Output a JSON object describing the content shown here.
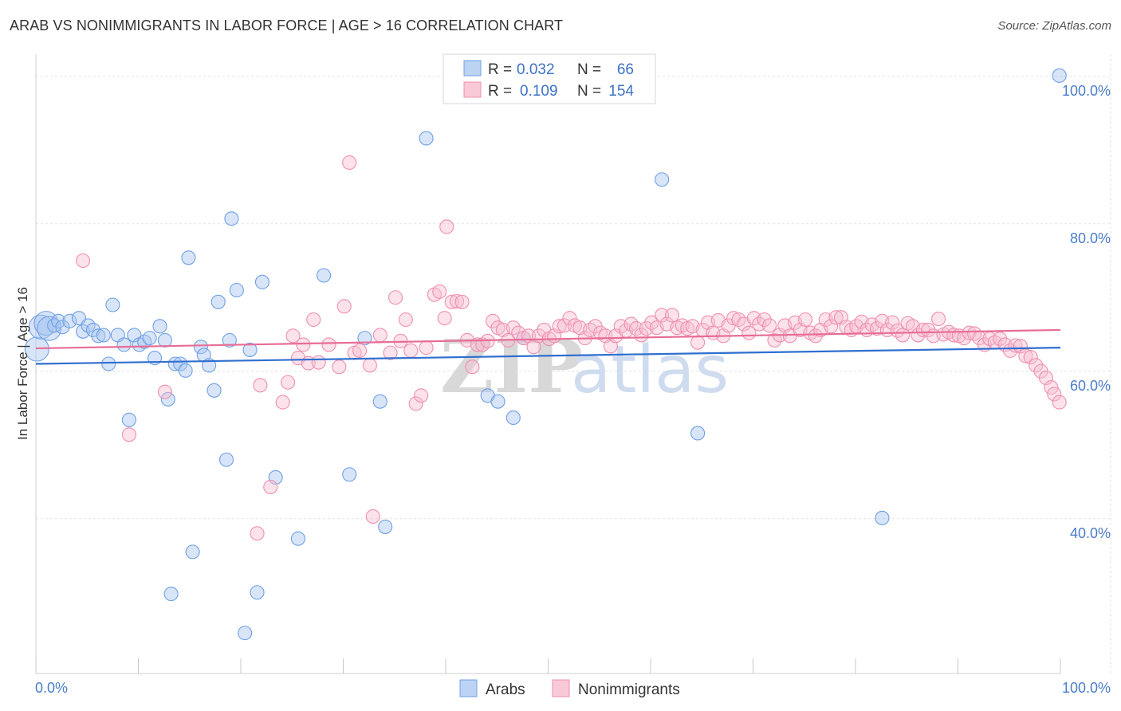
{
  "header": {
    "title": "ARAB VS NONIMMIGRANTS IN LABOR FORCE | AGE > 16 CORRELATION CHART",
    "source": "Source: ZipAtlas.com"
  },
  "watermark": {
    "zip": "ZIP",
    "atlas": "atlas"
  },
  "legend_top": {
    "rows": [
      {
        "r_label": "R =",
        "r_value": "0.032",
        "n_label": "N =",
        "n_value": "66",
        "color": "#6fa0e6"
      },
      {
        "r_label": "R =",
        "r_value": "0.109",
        "n_label": "N =",
        "n_value": "154",
        "color": "#f08fae"
      }
    ]
  },
  "chart_data": {
    "type": "scatter",
    "title": "ARAB VS NONIMMIGRANTS IN LABOR FORCE | AGE > 16 CORRELATION CHART",
    "xlabel": "",
    "ylabel": "In Labor Force | Age > 16",
    "xlim": [
      0,
      100
    ],
    "ylim": [
      19,
      103
    ],
    "x_tick_labels": [
      "0.0%",
      "100.0%"
    ],
    "y_ticks": [
      {
        "value": 40,
        "label": "40.0%"
      },
      {
        "value": 60,
        "label": "60.0%"
      },
      {
        "value": 80,
        "label": "80.0%"
      },
      {
        "value": 100,
        "label": "100.0%"
      }
    ],
    "legend": [
      "Arabs",
      "Nonimmigrants"
    ],
    "series": [
      {
        "name": "Arabs",
        "color": "#6fa0e6",
        "fill": "#a9c6ef",
        "trend": {
          "x0": 0,
          "y0": 61.0,
          "x1": 100,
          "y1": 63.2
        },
        "points": [
          [
            0.1,
            63.0
          ],
          [
            0.5,
            66.0
          ],
          [
            1.0,
            66.5
          ],
          [
            1.3,
            65.8
          ],
          [
            1.8,
            66.2
          ],
          [
            2.2,
            66.8
          ],
          [
            2.6,
            66.0
          ],
          [
            3.3,
            66.8
          ],
          [
            4.2,
            67.2
          ],
          [
            4.6,
            65.4
          ],
          [
            5.1,
            66.2
          ],
          [
            5.6,
            65.6
          ],
          [
            6.1,
            64.8
          ],
          [
            6.6,
            64.9
          ],
          [
            7.1,
            61.0
          ],
          [
            7.5,
            69.0
          ],
          [
            8.0,
            64.9
          ],
          [
            8.6,
            63.6
          ],
          [
            9.1,
            53.4
          ],
          [
            9.6,
            64.9
          ],
          [
            10.1,
            63.6
          ],
          [
            10.6,
            64.0
          ],
          [
            11.1,
            64.5
          ],
          [
            11.6,
            61.8
          ],
          [
            12.1,
            66.1
          ],
          [
            12.6,
            64.2
          ],
          [
            12.9,
            56.2
          ],
          [
            13.6,
            61.0
          ],
          [
            14.1,
            61.0
          ],
          [
            14.6,
            60.1
          ],
          [
            14.9,
            75.4
          ],
          [
            15.3,
            35.5
          ],
          [
            13.2,
            29.8
          ],
          [
            16.1,
            63.3
          ],
          [
            16.4,
            62.2
          ],
          [
            16.9,
            60.8
          ],
          [
            17.4,
            57.4
          ],
          [
            17.8,
            69.4
          ],
          [
            18.6,
            48.0
          ],
          [
            18.9,
            64.2
          ],
          [
            19.1,
            80.7
          ],
          [
            19.6,
            71.0
          ],
          [
            20.4,
            24.5
          ],
          [
            20.9,
            62.9
          ],
          [
            21.6,
            30.0
          ],
          [
            22.1,
            72.1
          ],
          [
            23.4,
            45.6
          ],
          [
            25.6,
            37.3
          ],
          [
            28.1,
            73.0
          ],
          [
            30.6,
            46.0
          ],
          [
            32.1,
            64.5
          ],
          [
            33.6,
            55.9
          ],
          [
            34.1,
            38.9
          ],
          [
            38.1,
            91.6
          ],
          [
            44.1,
            56.7
          ],
          [
            45.1,
            55.9
          ],
          [
            46.6,
            53.7
          ],
          [
            47.6,
            64.5
          ],
          [
            61.1,
            86.0
          ],
          [
            64.6,
            51.6
          ],
          [
            82.6,
            40.1
          ],
          [
            99.9,
            100.1
          ]
        ]
      },
      {
        "name": "Nonimmigrants",
        "color": "#f08fae",
        "fill": "#f7bfd2",
        "trend": {
          "x0": 0,
          "y0": 63.1,
          "x1": 100,
          "y1": 65.6
        },
        "points": [
          [
            4.6,
            75.0
          ],
          [
            9.1,
            51.4
          ],
          [
            12.6,
            57.2
          ],
          [
            21.6,
            38.0
          ],
          [
            21.9,
            58.1
          ],
          [
            22.9,
            44.3
          ],
          [
            24.1,
            55.8
          ],
          [
            24.6,
            58.5
          ],
          [
            25.1,
            64.8
          ],
          [
            25.6,
            61.8
          ],
          [
            26.1,
            63.6
          ],
          [
            26.6,
            61.1
          ],
          [
            27.1,
            67.0
          ],
          [
            27.6,
            61.2
          ],
          [
            28.6,
            63.6
          ],
          [
            29.6,
            60.6
          ],
          [
            30.1,
            68.8
          ],
          [
            30.6,
            88.3
          ],
          [
            31.1,
            62.5
          ],
          [
            31.6,
            62.8
          ],
          [
            32.6,
            60.8
          ],
          [
            32.9,
            40.3
          ],
          [
            33.6,
            64.9
          ],
          [
            34.6,
            62.5
          ],
          [
            35.1,
            70.0
          ],
          [
            35.6,
            64.1
          ],
          [
            36.1,
            67.0
          ],
          [
            36.6,
            62.8
          ],
          [
            37.1,
            55.6
          ],
          [
            37.6,
            56.7
          ],
          [
            38.1,
            63.2
          ],
          [
            38.9,
            70.4
          ],
          [
            39.4,
            70.8
          ],
          [
            39.9,
            67.2
          ],
          [
            40.1,
            79.6
          ],
          [
            40.6,
            69.4
          ],
          [
            41.1,
            69.5
          ],
          [
            41.6,
            69.4
          ],
          [
            42.1,
            64.2
          ],
          [
            42.6,
            60.6
          ],
          [
            43.1,
            63.6
          ],
          [
            43.6,
            63.6
          ],
          [
            44.1,
            64.1
          ],
          [
            44.6,
            66.8
          ],
          [
            45.1,
            65.9
          ],
          [
            45.6,
            65.6
          ],
          [
            46.1,
            64.2
          ],
          [
            46.6,
            65.9
          ],
          [
            47.1,
            65.2
          ],
          [
            47.6,
            64.5
          ],
          [
            48.1,
            64.8
          ],
          [
            48.6,
            63.3
          ],
          [
            49.1,
            64.8
          ],
          [
            49.6,
            65.6
          ],
          [
            50.1,
            64.4
          ],
          [
            50.6,
            64.8
          ],
          [
            51.1,
            66.1
          ],
          [
            51.6,
            66.2
          ],
          [
            52.1,
            67.2
          ],
          [
            52.6,
            66.2
          ],
          [
            53.1,
            65.9
          ],
          [
            53.6,
            64.5
          ],
          [
            54.1,
            65.6
          ],
          [
            54.6,
            66.1
          ],
          [
            55.1,
            65.2
          ],
          [
            55.6,
            64.8
          ],
          [
            56.1,
            63.4
          ],
          [
            56.6,
            64.8
          ],
          [
            57.1,
            66.1
          ],
          [
            57.6,
            65.5
          ],
          [
            58.1,
            66.4
          ],
          [
            58.6,
            65.8
          ],
          [
            59.1,
            64.9
          ],
          [
            59.6,
            65.8
          ],
          [
            60.1,
            66.6
          ],
          [
            60.6,
            65.9
          ],
          [
            61.1,
            67.6
          ],
          [
            61.6,
            66.4
          ],
          [
            62.1,
            67.6
          ],
          [
            62.6,
            65.9
          ],
          [
            63.1,
            66.2
          ],
          [
            63.6,
            65.8
          ],
          [
            64.1,
            66.1
          ],
          [
            64.6,
            63.9
          ],
          [
            65.1,
            65.6
          ],
          [
            65.6,
            66.6
          ],
          [
            66.1,
            65.2
          ],
          [
            66.6,
            66.9
          ],
          [
            67.1,
            64.8
          ],
          [
            67.6,
            66.2
          ],
          [
            68.1,
            67.2
          ],
          [
            68.6,
            67.0
          ],
          [
            69.1,
            66.4
          ],
          [
            69.6,
            65.2
          ],
          [
            70.1,
            67.2
          ],
          [
            70.6,
            66.4
          ],
          [
            71.1,
            67.0
          ],
          [
            71.6,
            66.2
          ],
          [
            72.1,
            64.2
          ],
          [
            72.6,
            64.9
          ],
          [
            73.1,
            66.2
          ],
          [
            73.6,
            64.8
          ],
          [
            74.1,
            66.6
          ],
          [
            74.6,
            65.6
          ],
          [
            75.1,
            67.0
          ],
          [
            75.6,
            65.2
          ],
          [
            76.1,
            64.8
          ],
          [
            76.6,
            65.6
          ],
          [
            77.1,
            67.0
          ],
          [
            77.6,
            66.1
          ],
          [
            78.1,
            67.3
          ],
          [
            78.6,
            67.3
          ],
          [
            79.1,
            66.0
          ],
          [
            79.6,
            65.6
          ],
          [
            80.1,
            66.1
          ],
          [
            80.6,
            66.7
          ],
          [
            81.1,
            65.6
          ],
          [
            81.6,
            66.3
          ],
          [
            82.1,
            65.8
          ],
          [
            82.6,
            66.8
          ],
          [
            83.1,
            65.6
          ],
          [
            83.6,
            66.6
          ],
          [
            84.1,
            65.5
          ],
          [
            84.6,
            64.9
          ],
          [
            85.1,
            66.5
          ],
          [
            85.6,
            66.1
          ],
          [
            86.1,
            64.9
          ],
          [
            86.6,
            65.6
          ],
          [
            87.1,
            65.6
          ],
          [
            87.6,
            64.8
          ],
          [
            88.1,
            67.1
          ],
          [
            88.6,
            65.0
          ],
          [
            89.1,
            65.3
          ],
          [
            89.6,
            64.9
          ],
          [
            90.1,
            64.8
          ],
          [
            90.6,
            64.5
          ],
          [
            91.1,
            65.2
          ],
          [
            91.6,
            65.1
          ],
          [
            92.1,
            64.5
          ],
          [
            92.6,
            63.6
          ],
          [
            93.1,
            64.4
          ],
          [
            93.6,
            63.9
          ],
          [
            94.1,
            64.4
          ],
          [
            94.6,
            63.6
          ],
          [
            95.1,
            62.8
          ],
          [
            95.6,
            63.5
          ],
          [
            96.1,
            63.4
          ],
          [
            96.6,
            62.1
          ],
          [
            97.1,
            61.9
          ],
          [
            97.6,
            60.8
          ],
          [
            98.1,
            60.0
          ],
          [
            98.6,
            59.1
          ],
          [
            99.1,
            57.8
          ],
          [
            99.4,
            56.9
          ],
          [
            99.9,
            55.8
          ]
        ]
      }
    ]
  }
}
